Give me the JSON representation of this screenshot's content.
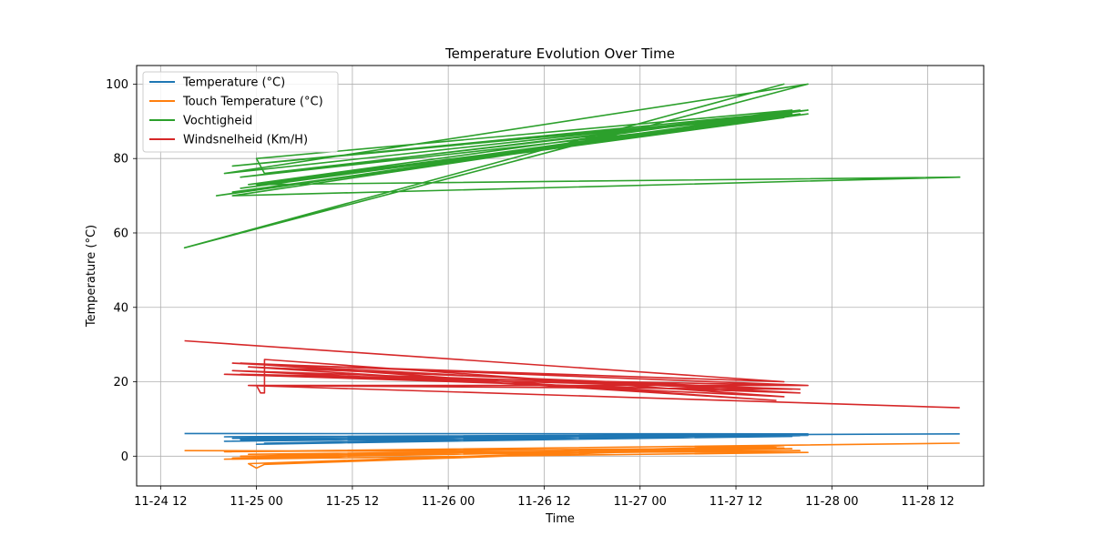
{
  "chart_data": {
    "type": "line",
    "title": "Temperature Evolution Over Time",
    "xlabel": "Time",
    "ylabel": "Temperature (°C)",
    "x_unit": "datetime",
    "xlim": [
      "2024-11-24T09:00",
      "2024-11-28T19:00"
    ],
    "ylim": [
      -8,
      105
    ],
    "grid": true,
    "legend_position": "top-left",
    "x_ticks": [
      {
        "t": "2024-11-24T12:00",
        "label": "11-24 12"
      },
      {
        "t": "2024-11-25T00:00",
        "label": "11-25 00"
      },
      {
        "t": "2024-11-25T12:00",
        "label": "11-25 12"
      },
      {
        "t": "2024-11-26T00:00",
        "label": "11-26 00"
      },
      {
        "t": "2024-11-26T12:00",
        "label": "11-26 12"
      },
      {
        "t": "2024-11-27T00:00",
        "label": "11-27 00"
      },
      {
        "t": "2024-11-27T12:00",
        "label": "11-27 12"
      },
      {
        "t": "2024-11-28T00:00",
        "label": "11-28 00"
      },
      {
        "t": "2024-11-28T12:00",
        "label": "11-28 12"
      }
    ],
    "y_ticks": [
      0,
      20,
      40,
      60,
      80,
      100
    ],
    "series": [
      {
        "name": "Temperature (°C)",
        "color": "#1f77b4",
        "points": [
          [
            "2024-11-24T15:00",
            6.1
          ],
          [
            "2024-11-27T21:00",
            6.0
          ],
          [
            "2024-11-24T20:00",
            4.0
          ],
          [
            "2024-11-27T20:00",
            5.7
          ],
          [
            "2024-11-24T23:00",
            4.5
          ],
          [
            "2024-11-27T18:00",
            5.9
          ],
          [
            "2024-11-24T22:00",
            4.2
          ],
          [
            "2024-11-27T20:00",
            5.5
          ],
          [
            "2024-11-25T00:00",
            3.2
          ],
          [
            "2024-11-27T17:00",
            5.7
          ],
          [
            "2024-11-24T21:00",
            4.8
          ],
          [
            "2024-11-27T20:00",
            5.8
          ],
          [
            "2024-11-24T23:00",
            4.1
          ],
          [
            "2024-11-27T19:00",
            5.3
          ],
          [
            "2024-11-25T01:00",
            3.5
          ],
          [
            "2024-11-27T16:00",
            5.8
          ],
          [
            "2024-11-24T22:00",
            4.6
          ],
          [
            "2024-11-27T21:00",
            5.6
          ],
          [
            "2024-11-24T20:00",
            5.2
          ],
          [
            "2024-11-28T16:00",
            6.0
          ]
        ]
      },
      {
        "name": "Touch Temperature (°C)",
        "color": "#ff7f0e",
        "points": [
          [
            "2024-11-24T15:00",
            1.5
          ],
          [
            "2024-11-27T21:00",
            1.0
          ],
          [
            "2024-11-24T20:00",
            -0.8
          ],
          [
            "2024-11-27T18:00",
            2.8
          ],
          [
            "2024-11-24T23:00",
            -2.0
          ],
          [
            "2024-11-25T00:00",
            -3.2
          ],
          [
            "2024-11-25T01:00",
            -2.2
          ],
          [
            "2024-11-27T17:00",
            2.5
          ],
          [
            "2024-11-24T21:00",
            -0.5
          ],
          [
            "2024-11-27T19:00",
            2.0
          ],
          [
            "2024-11-24T23:00",
            0.5
          ],
          [
            "2024-11-27T20:00",
            1.5
          ],
          [
            "2024-11-24T22:00",
            0.0
          ],
          [
            "2024-11-27T18:00",
            2.2
          ],
          [
            "2024-11-24T20:00",
            1.2
          ],
          [
            "2024-11-28T16:00",
            3.5
          ]
        ]
      },
      {
        "name": "Vochtigheid",
        "color": "#2ca02c",
        "points": [
          [
            "2024-11-24T15:00",
            56
          ],
          [
            "2024-11-27T18:00",
            100
          ],
          [
            "2024-11-24T15:00",
            56
          ],
          [
            "2024-11-27T21:00",
            100
          ],
          [
            "2024-11-24T20:00",
            76
          ],
          [
            "2024-11-27T21:00",
            93
          ],
          [
            "2024-11-24T21:00",
            78
          ],
          [
            "2024-11-27T19:00",
            92
          ],
          [
            "2024-11-24T19:00",
            70
          ],
          [
            "2024-11-27T20:00",
            93
          ],
          [
            "2024-11-24T22:00",
            75
          ],
          [
            "2024-11-27T18:00",
            91
          ],
          [
            "2024-11-24T21:00",
            71
          ],
          [
            "2024-11-27T21:00",
            92
          ],
          [
            "2024-11-24T23:00",
            73
          ],
          [
            "2024-11-27T19:00",
            93
          ],
          [
            "2024-11-25T00:00",
            80
          ],
          [
            "2024-11-25T01:00",
            76
          ],
          [
            "2024-11-27T18:00",
            92
          ],
          [
            "2024-11-24T21:00",
            70
          ],
          [
            "2024-11-28T16:00",
            75
          ],
          [
            "2024-11-25T00:00",
            73
          ],
          [
            "2024-11-27T20:00",
            92
          ],
          [
            "2024-11-24T22:00",
            72
          ],
          [
            "2024-11-27T21:00",
            93
          ]
        ]
      },
      {
        "name": "Windsnelheid (Km/H)",
        "color": "#d62728",
        "points": [
          [
            "2024-11-24T15:00",
            31
          ],
          [
            "2024-11-27T18:00",
            20
          ],
          [
            "2024-11-24T21:00",
            25
          ],
          [
            "2024-11-27T20:00",
            17
          ],
          [
            "2024-11-24T20:00",
            22
          ],
          [
            "2024-11-27T21:00",
            19
          ],
          [
            "2024-11-24T22:00",
            25
          ],
          [
            "2024-11-27T17:00",
            15
          ],
          [
            "2024-11-24T23:00",
            24
          ],
          [
            "2024-11-27T19:00",
            18
          ],
          [
            "2024-11-25T00:00",
            19
          ],
          [
            "2024-11-25T00:30",
            17
          ],
          [
            "2024-11-25T01:00",
            17
          ],
          [
            "2024-11-25T01:00",
            26
          ],
          [
            "2024-11-27T18:00",
            16
          ],
          [
            "2024-11-24T21:00",
            23
          ],
          [
            "2024-11-27T20:00",
            18
          ],
          [
            "2024-11-24T22:00",
            22
          ],
          [
            "2024-11-27T21:00",
            19
          ],
          [
            "2024-11-24T23:00",
            19
          ],
          [
            "2024-11-28T16:00",
            13
          ]
        ]
      }
    ]
  }
}
